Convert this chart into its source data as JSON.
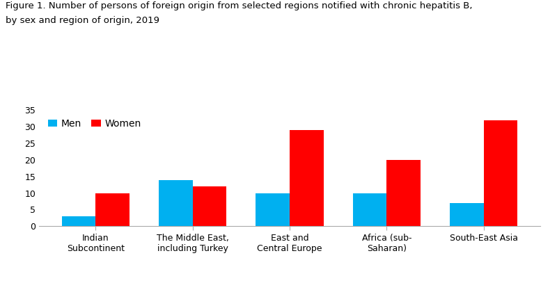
{
  "title_line1": "Figure 1. Number of persons of foreign origin from selected regions notified with chronic hepatitis B,",
  "title_line2": "by sex and region of origin, 2019",
  "categories": [
    "Indian\nSubcontinent",
    "The Middle East,\nincluding Turkey",
    "East and\nCentral Europe",
    "Africa (sub-\nSaharan)",
    "South-East Asia"
  ],
  "men_values": [
    3,
    14,
    10,
    10,
    7
  ],
  "women_values": [
    10,
    12,
    29,
    20,
    32
  ],
  "men_color": "#00B0F0",
  "women_color": "#FF0000",
  "legend_labels": [
    "Men",
    "Women"
  ],
  "ylim": [
    0,
    35
  ],
  "yticks": [
    0,
    5,
    10,
    15,
    20,
    25,
    30,
    35
  ],
  "bar_width": 0.35,
  "title_fontsize": 9.5,
  "tick_fontsize": 9,
  "legend_fontsize": 10,
  "background_color": "#ffffff"
}
